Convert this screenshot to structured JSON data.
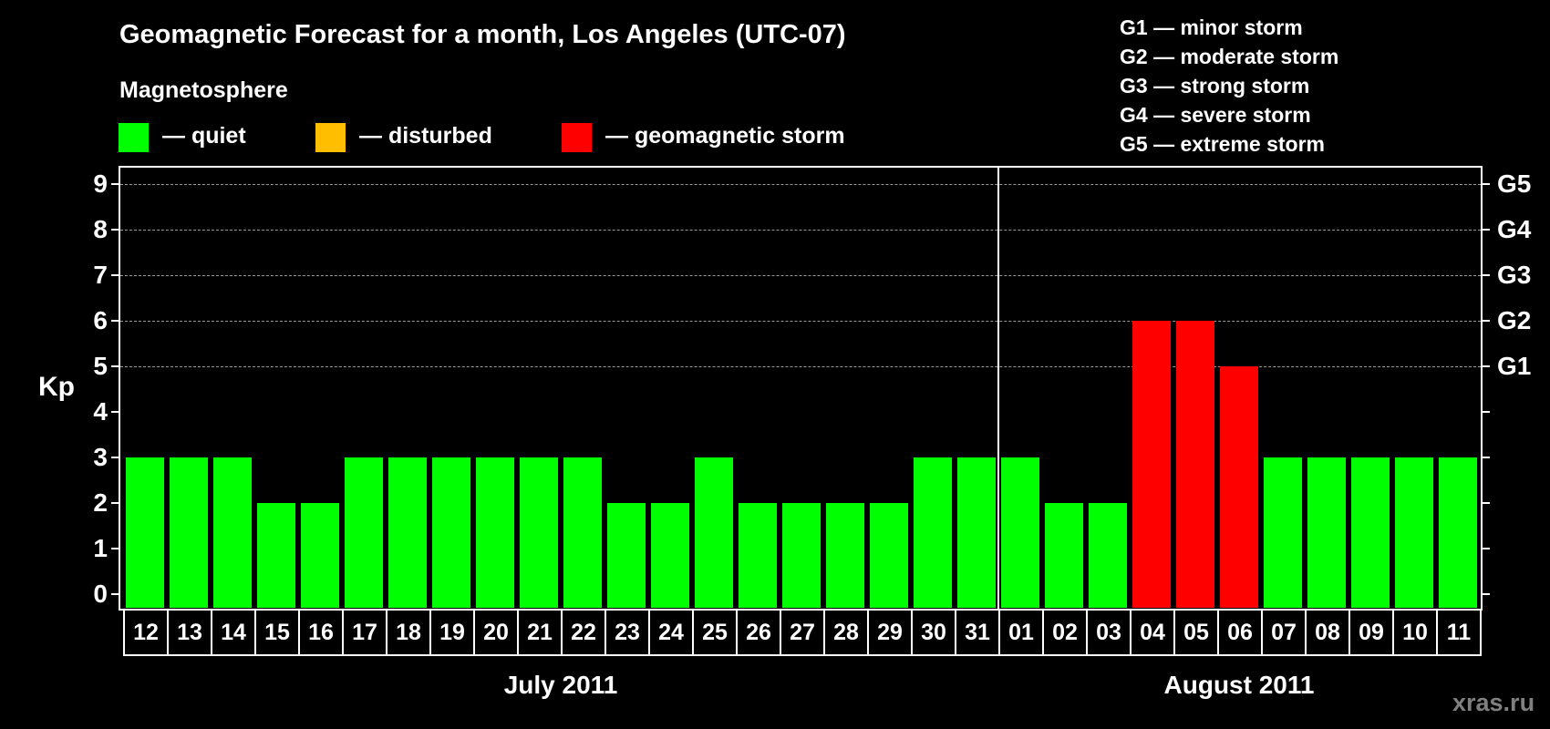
{
  "header": {
    "title": "Geomagnetic Forecast for a month, Los Angeles (UTC-07)",
    "subtitle": "Magnetosphere"
  },
  "legend": [
    {
      "label": "— quiet",
      "color": "#00ff00"
    },
    {
      "label": "— disturbed",
      "color": "#ffbf00"
    },
    {
      "label": "— geomagnetic storm",
      "color": "#ff0000"
    }
  ],
  "storm_scale": [
    "G1 — minor storm",
    "G2 — moderate storm",
    "G3 — strong storm",
    "G4 — severe storm",
    "G5 — extreme storm"
  ],
  "watermark": "xras.ru",
  "colors": {
    "quiet": "#00ff00",
    "disturbed": "#ffbf00",
    "storm": "#ff0000",
    "grid": "#9a9a9a",
    "background": "#000000"
  },
  "chart_data": {
    "type": "bar",
    "title": "Geomagnetic Forecast for a month, Los Angeles (UTC-07)",
    "subtitle": "Magnetosphere",
    "xlabel": "",
    "ylabel": "Kp",
    "ylim": [
      0,
      9
    ],
    "yticks": [
      0,
      1,
      2,
      3,
      4,
      5,
      6,
      7,
      8,
      9
    ],
    "secondary_yticks": [
      {
        "value": 5,
        "label": "G1"
      },
      {
        "value": 6,
        "label": "G2"
      },
      {
        "value": 7,
        "label": "G3"
      },
      {
        "value": 8,
        "label": "G4"
      },
      {
        "value": 9,
        "label": "G5"
      }
    ],
    "grid": {
      "dashed_at": [
        5,
        6,
        7,
        8,
        9
      ]
    },
    "months": [
      {
        "label": "July 2011",
        "start_index": 0,
        "count": 20
      },
      {
        "label": "August 2011",
        "start_index": 20,
        "count": 11
      }
    ],
    "categories": [
      "12",
      "13",
      "14",
      "15",
      "16",
      "17",
      "18",
      "19",
      "20",
      "21",
      "22",
      "23",
      "24",
      "25",
      "26",
      "27",
      "28",
      "29",
      "30",
      "31",
      "01",
      "02",
      "03",
      "04",
      "05",
      "06",
      "07",
      "08",
      "09",
      "10",
      "11"
    ],
    "values": [
      3,
      3,
      3,
      2,
      2,
      3,
      3,
      3,
      3,
      3,
      3,
      2,
      2,
      3,
      2,
      2,
      2,
      2,
      3,
      3,
      3,
      2,
      2,
      6,
      6,
      5,
      3,
      3,
      3,
      3,
      3
    ],
    "status": [
      "quiet",
      "quiet",
      "quiet",
      "quiet",
      "quiet",
      "quiet",
      "quiet",
      "quiet",
      "quiet",
      "quiet",
      "quiet",
      "quiet",
      "quiet",
      "quiet",
      "quiet",
      "quiet",
      "quiet",
      "quiet",
      "quiet",
      "quiet",
      "quiet",
      "quiet",
      "quiet",
      "storm",
      "storm",
      "storm",
      "quiet",
      "quiet",
      "quiet",
      "quiet",
      "quiet"
    ],
    "legend": [
      {
        "label": "quiet",
        "color": "#00ff00"
      },
      {
        "label": "disturbed",
        "color": "#ffbf00"
      },
      {
        "label": "geomagnetic storm",
        "color": "#ff0000"
      }
    ],
    "legend_position": "top"
  }
}
